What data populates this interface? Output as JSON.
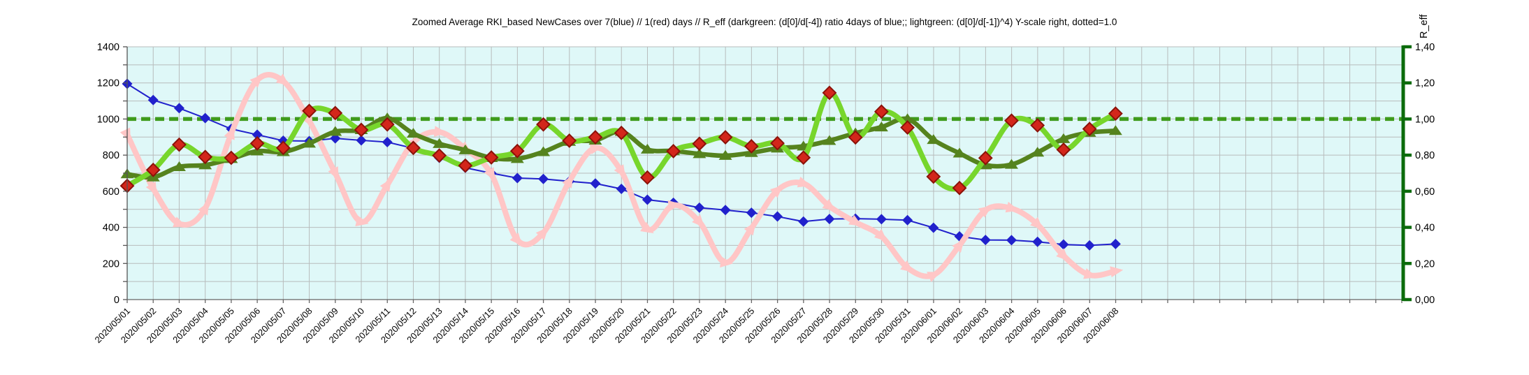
{
  "chart_data": {
    "type": "line",
    "title": "Zoomed Average RKI_based NewCases over 7(blue) // 1(red) days //  R_eff (darkgreen: (d[0]/d[-4]) ratio 4days of blue;; lightgreen: (d[0]/d[-1])^4) Y-scale right, dotted=1.0",
    "x_labels": [
      "2020/05/01",
      "2020/05/02",
      "2020/05/03",
      "2020/05/04",
      "2020/05/05",
      "2020/05/06",
      "2020/05/07",
      "2020/05/08",
      "2020/05/09",
      "2020/05/10",
      "2020/05/11",
      "2020/05/12",
      "2020/05/13",
      "2020/05/14",
      "2020/05/15",
      "2020/05/16",
      "2020/05/17",
      "2020/05/18",
      "2020/05/19",
      "2020/05/20",
      "2020/05/21",
      "2020/05/22",
      "2020/05/23",
      "2020/05/24",
      "2020/05/25",
      "2020/05/26",
      "2020/05/27",
      "2020/05/28",
      "2020/05/29",
      "2020/05/30",
      "2020/05/31",
      "2020/06/01",
      "2020/06/02",
      "2020/06/03",
      "2020/06/04",
      "2020/06/05",
      "2020/06/06",
      "2020/06/07",
      "2020/06/08"
    ],
    "left_axis": {
      "min": 0,
      "max": 1400,
      "minor_step": 100,
      "label_step": 200,
      "labels": [
        "0",
        "200",
        "400",
        "600",
        "800",
        "1000",
        "1200",
        "1400"
      ]
    },
    "right_axis": {
      "title": "R_eff",
      "min": 0,
      "max": 1.4,
      "label_step": 0.2,
      "labels": [
        "0,00",
        "0,20",
        "0,40",
        "0,60",
        "0,80",
        "1,00",
        "1,20",
        "1,40"
      ]
    },
    "reference_line": {
      "value_left": 1000,
      "value_right": 1.0,
      "style": "dotted",
      "color": "#3f9b1c"
    },
    "grid": {
      "columns_total": 48,
      "plot_bg": "#dff8f8",
      "line_color": "#b8bcbc"
    },
    "series": [
      {
        "id": "newcases_7day_blue",
        "name": "Average NewCases over 7 days (blue)",
        "axis": "left",
        "color": "#2121cc",
        "marker": "diamond",
        "smooth": false,
        "width": 2,
        "values": [
          1195,
          1105,
          1060,
          1005,
          945,
          913,
          880,
          878,
          893,
          882,
          872,
          838,
          785,
          730,
          700,
          673,
          668,
          655,
          643,
          613,
          553,
          536,
          509,
          496,
          481,
          460,
          432,
          446,
          448,
          445,
          440,
          398,
          350,
          330,
          329,
          320,
          305,
          300,
          308
        ]
      },
      {
        "id": "newcases_1day_pink",
        "name": "NewCases over 1 day (red/pink)",
        "axis": "left",
        "color": "#ffc6c6",
        "marker": "arrow",
        "smooth": true,
        "width": 8,
        "values": [
          915,
          615,
          420,
          505,
          920,
          1215,
          1210,
          990,
          700,
          430,
          635,
          870,
          928,
          835,
          695,
          330,
          370,
          655,
          840,
          710,
          390,
          523,
          430,
          205,
          395,
          605,
          643,
          516,
          429,
          350,
          176,
          136,
          300,
          495,
          505,
          416,
          243,
          136,
          158
        ]
      },
      {
        "id": "reff_darkgreen_4day",
        "name": "R_eff darkgreen (d[0]/d[-4]) ratio 4days of blue",
        "axis": "right",
        "color": "#55831e",
        "marker": "triangle",
        "smooth": true,
        "width": 6.5,
        "values": [
          0.695,
          0.678,
          0.735,
          0.745,
          0.78,
          0.822,
          0.818,
          0.865,
          0.93,
          0.94,
          1.005,
          0.92,
          0.863,
          0.828,
          0.785,
          0.78,
          0.818,
          0.875,
          0.882,
          0.93,
          0.832,
          0.823,
          0.807,
          0.797,
          0.813,
          0.838,
          0.849,
          0.88,
          0.922,
          0.955,
          1.0,
          0.885,
          0.81,
          0.745,
          0.748,
          0.815,
          0.89,
          0.925,
          0.935
        ]
      },
      {
        "id": "reff_lightgreen_pow4",
        "name": "R_eff lightgreen (d[0]/d[-1])^4",
        "axis": "right",
        "color": "#77d62c",
        "marker": "red-diamond",
        "marker_color": "#d3261b",
        "marker_edge": "#8b1209",
        "smooth": true,
        "width": 7.5,
        "values": [
          0.63,
          0.718,
          0.858,
          0.79,
          0.785,
          0.865,
          0.84,
          1.045,
          1.033,
          0.94,
          0.97,
          0.84,
          0.798,
          0.742,
          0.787,
          0.823,
          0.97,
          0.88,
          0.899,
          0.923,
          0.676,
          0.822,
          0.863,
          0.899,
          0.849,
          0.866,
          0.786,
          1.145,
          0.898,
          1.041,
          0.953,
          0.681,
          0.618,
          0.784,
          0.991,
          0.965,
          0.83,
          0.945,
          1.03
        ]
      }
    ],
    "layout": {
      "plot_left": 182,
      "plot_right": 2006,
      "plot_top": 67,
      "plot_bottom": 429,
      "day_spacing": 37.22,
      "right_axis_color": "#0b6b0b",
      "axis_text_color": "#000000"
    }
  }
}
